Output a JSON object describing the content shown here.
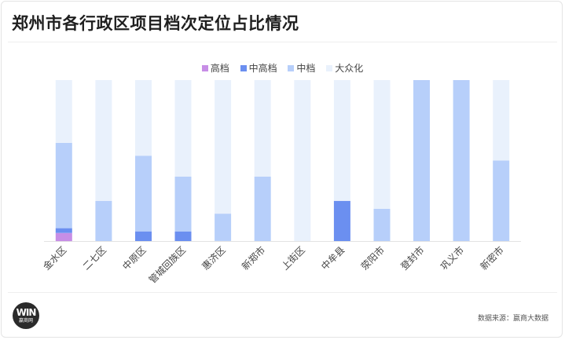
{
  "title": "郑州市各行政区项目档次定位占比情况",
  "source": "数据来源：嬴商大数据",
  "logo": {
    "mark": "WIN",
    "text": "嬴商网"
  },
  "colors": {
    "高档": "#c78ee6",
    "中高档": "#6b8ff0",
    "中档": "#b7cffa",
    "大众化": "#e9f1fc"
  },
  "chart_data": {
    "type": "bar",
    "stacked": true,
    "percent": true,
    "title": "郑州市各行政区项目档次定位占比情况",
    "categories": [
      "金水区",
      "二七区",
      "中原区",
      "管城回族区",
      "惠济区",
      "新郑市",
      "上街区",
      "中牟县",
      "荥阳市",
      "登封市",
      "巩义市",
      "新密市"
    ],
    "series": [
      {
        "name": "高档",
        "values": [
          5,
          0,
          0,
          0,
          0,
          0,
          0,
          0,
          0,
          0,
          0,
          0
        ]
      },
      {
        "name": "中高档",
        "values": [
          3,
          0,
          6,
          6,
          0,
          0,
          0,
          25,
          0,
          0,
          0,
          0
        ]
      },
      {
        "name": "中档",
        "values": [
          53,
          25,
          47,
          34,
          17,
          40,
          0,
          0,
          20,
          100,
          100,
          50
        ]
      },
      {
        "name": "大众化",
        "values": [
          39,
          75,
          47,
          60,
          83,
          60,
          100,
          75,
          80,
          0,
          0,
          50
        ]
      }
    ],
    "ylim": [
      0,
      100
    ],
    "legend_position": "top-center",
    "grid": false
  }
}
